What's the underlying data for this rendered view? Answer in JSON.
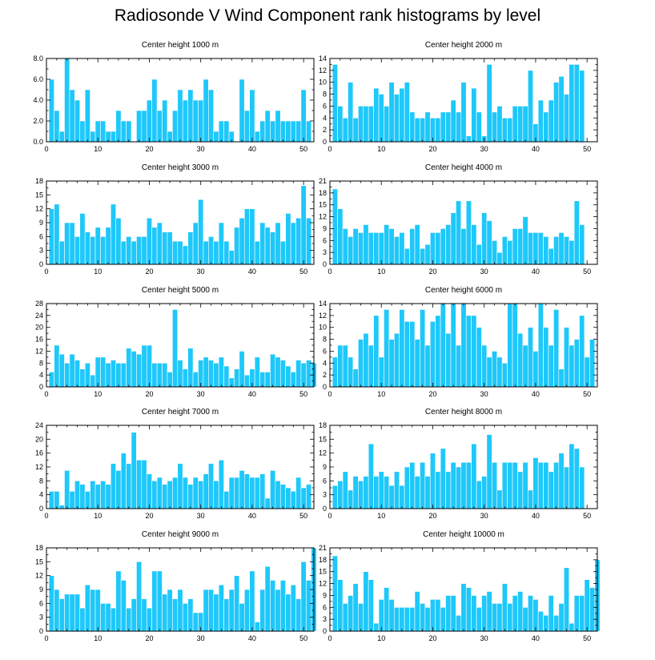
{
  "figure": {
    "title": "Radiosonde V Wind Component rank histograms by level",
    "bar_color": "#1ec8fa",
    "bar_stroke": "#ffffff"
  },
  "chart_data": [
    {
      "type": "bar",
      "title": "Center height 1000 m",
      "xlim": [
        0,
        52
      ],
      "ylim": [
        0,
        8
      ],
      "yticks": [
        0,
        2,
        4,
        6,
        8
      ],
      "ytick_labels": [
        "0.0",
        "2.0",
        "4.0",
        "6.0",
        "8.0"
      ],
      "xticks": [
        0,
        10,
        20,
        30,
        40,
        50
      ],
      "values": [
        6,
        3,
        1,
        8,
        5,
        4,
        2,
        5,
        1,
        2,
        2,
        1,
        1,
        3,
        2,
        2,
        0,
        3,
        3,
        4,
        6,
        3,
        4,
        1,
        3,
        5,
        4,
        5,
        4,
        4,
        6,
        5,
        1,
        2,
        2,
        1,
        0,
        6,
        3,
        5,
        1,
        2,
        3,
        2,
        3,
        2,
        2,
        2,
        2,
        5,
        2
      ]
    },
    {
      "type": "bar",
      "title": "Center height 2000 m",
      "xlim": [
        0,
        52
      ],
      "ylim": [
        0,
        14
      ],
      "yticks": [
        0,
        2,
        4,
        6,
        8,
        10,
        12,
        14
      ],
      "ytick_labels": [
        "0",
        "2",
        "4",
        "6",
        "8",
        "10",
        "12",
        "14"
      ],
      "xticks": [
        0,
        10,
        20,
        30,
        40,
        50
      ],
      "values": [
        13,
        6,
        4,
        10,
        4,
        6,
        6,
        6,
        9,
        8,
        6,
        10,
        8,
        9,
        10,
        5,
        4,
        4,
        5,
        4,
        4,
        5,
        5,
        7,
        5,
        10,
        1,
        9,
        5,
        1,
        13,
        5,
        6,
        4,
        4,
        6,
        6,
        6,
        12,
        3,
        7,
        5,
        7,
        10,
        11,
        8,
        13,
        13,
        12
      ]
    },
    {
      "type": "bar",
      "title": "Center height 3000 m",
      "xlim": [
        0,
        52
      ],
      "ylim": [
        0,
        18
      ],
      "yticks": [
        0,
        3,
        6,
        9,
        12,
        15,
        18
      ],
      "ytick_labels": [
        "0",
        "3",
        "6",
        "9",
        "12",
        "15",
        "18"
      ],
      "xticks": [
        0,
        10,
        20,
        30,
        40,
        50
      ],
      "values": [
        12,
        13,
        5,
        9,
        9,
        6,
        11,
        7,
        6,
        8,
        6,
        8,
        13,
        10,
        5,
        6,
        5,
        6,
        6,
        10,
        8,
        9,
        7,
        7,
        5,
        5,
        4,
        7,
        9,
        14,
        5,
        6,
        5,
        9,
        5,
        3,
        8,
        10,
        12,
        12,
        5,
        9,
        8,
        7,
        9,
        5,
        11,
        9,
        10,
        17,
        10
      ]
    },
    {
      "type": "bar",
      "title": "Center height 4000 m",
      "xlim": [
        0,
        52
      ],
      "ylim": [
        0,
        21
      ],
      "yticks": [
        0,
        3,
        6,
        9,
        12,
        15,
        18,
        21
      ],
      "ytick_labels": [
        "0",
        "3",
        "6",
        "9",
        "12",
        "15",
        "18",
        "21"
      ],
      "xticks": [
        0,
        10,
        20,
        30,
        40,
        50
      ],
      "values": [
        19,
        14,
        9,
        7,
        9,
        8,
        10,
        8,
        8,
        8,
        10,
        9,
        7,
        8,
        4,
        9,
        10,
        4,
        5,
        8,
        8,
        9,
        10,
        13,
        16,
        9,
        16,
        10,
        5,
        13,
        11,
        6,
        3,
        7,
        6,
        9,
        9,
        12,
        8,
        8,
        8,
        7,
        4,
        7,
        8,
        7,
        6,
        16,
        10
      ]
    },
    {
      "type": "bar",
      "title": "Center height 5000 m",
      "xlim": [
        0,
        52
      ],
      "ylim": [
        0,
        28
      ],
      "yticks": [
        0,
        4,
        8,
        12,
        16,
        20,
        24,
        28
      ],
      "ytick_labels": [
        "0",
        "4",
        "8",
        "12",
        "16",
        "20",
        "24",
        "28"
      ],
      "xticks": [
        0,
        10,
        20,
        30,
        40,
        50
      ],
      "values": [
        5,
        14,
        11,
        8,
        11,
        9,
        6,
        8,
        4,
        10,
        10,
        8,
        9,
        8,
        8,
        13,
        12,
        11,
        14,
        14,
        8,
        8,
        8,
        5,
        26,
        9,
        6,
        13,
        5,
        9,
        10,
        9,
        8,
        10,
        7,
        3,
        6,
        12,
        4,
        6,
        10,
        5,
        5,
        11,
        10,
        9,
        7,
        5,
        9,
        8,
        9,
        8
      ]
    },
    {
      "type": "bar",
      "title": "Center height 6000 m",
      "xlim": [
        0,
        52
      ],
      "ylim": [
        0,
        14
      ],
      "yticks": [
        0,
        2,
        4,
        6,
        8,
        10,
        12,
        14
      ],
      "ytick_labels": [
        "0",
        "2",
        "4",
        "6",
        "8",
        "10",
        "12",
        "14"
      ],
      "xticks": [
        0,
        10,
        20,
        30,
        40,
        50
      ],
      "values": [
        5,
        7,
        7,
        5,
        3,
        8,
        9,
        7,
        12,
        5,
        13,
        8,
        9,
        13,
        11,
        11,
        8,
        13,
        7,
        11,
        12,
        14,
        9,
        14,
        7,
        14,
        12,
        12,
        10,
        7,
        5,
        6,
        5,
        4,
        14,
        14,
        9,
        7,
        10,
        6,
        14,
        10,
        7,
        13,
        3,
        10,
        7,
        8,
        12,
        5,
        8
      ]
    },
    {
      "type": "bar",
      "title": "Center height 7000 m",
      "xlim": [
        0,
        52
      ],
      "ylim": [
        0,
        24
      ],
      "yticks": [
        0,
        4,
        8,
        12,
        16,
        20,
        24
      ],
      "ytick_labels": [
        "0",
        "4",
        "8",
        "12",
        "16",
        "20",
        "24"
      ],
      "xticks": [
        0,
        10,
        20,
        30,
        40,
        50
      ],
      "values": [
        5,
        5,
        1,
        11,
        5,
        8,
        7,
        5,
        8,
        7,
        8,
        7,
        13,
        11,
        16,
        13,
        22,
        14,
        14,
        10,
        8,
        9,
        7,
        8,
        9,
        13,
        9,
        7,
        9,
        8,
        10,
        13,
        8,
        14,
        5,
        9,
        9,
        11,
        10,
        9,
        9,
        10,
        3,
        11,
        8,
        7,
        6,
        5,
        9,
        6,
        7
      ]
    },
    {
      "type": "bar",
      "title": "Center height 8000 m",
      "xlim": [
        0,
        52
      ],
      "ylim": [
        0,
        18
      ],
      "yticks": [
        0,
        3,
        6,
        9,
        12,
        15,
        18
      ],
      "ytick_labels": [
        "0",
        "3",
        "6",
        "9",
        "12",
        "15",
        "18"
      ],
      "xticks": [
        0,
        10,
        20,
        30,
        40,
        50
      ],
      "values": [
        5,
        6,
        8,
        4,
        7,
        6,
        7,
        14,
        7,
        8,
        7,
        5,
        8,
        5,
        9,
        10,
        7,
        10,
        7,
        12,
        8,
        13,
        8,
        10,
        9,
        10,
        10,
        14,
        6,
        7,
        16,
        10,
        4,
        10,
        10,
        10,
        8,
        10,
        4,
        11,
        10,
        10,
        8,
        10,
        12,
        9,
        14,
        13,
        9
      ]
    },
    {
      "type": "bar",
      "title": "Center height 9000 m",
      "xlim": [
        0,
        52
      ],
      "ylim": [
        0,
        18
      ],
      "yticks": [
        0,
        3,
        6,
        9,
        12,
        15,
        18
      ],
      "ytick_labels": [
        "0",
        "3",
        "6",
        "9",
        "12",
        "15",
        "18"
      ],
      "xticks": [
        0,
        10,
        20,
        30,
        40,
        50
      ],
      "values": [
        12,
        9,
        7,
        8,
        8,
        8,
        5,
        10,
        9,
        9,
        6,
        6,
        5,
        13,
        11,
        5,
        7,
        15,
        7,
        5,
        13,
        13,
        8,
        9,
        7,
        9,
        6,
        7,
        4,
        4,
        9,
        9,
        8,
        10,
        7,
        9,
        12,
        6,
        9,
        13,
        2,
        9,
        14,
        11,
        9,
        11,
        8,
        10,
        7,
        15,
        11,
        18
      ]
    },
    {
      "type": "bar",
      "title": "Center height 10000 m",
      "xlim": [
        0,
        52
      ],
      "ylim": [
        0,
        21
      ],
      "yticks": [
        0,
        3,
        6,
        9,
        12,
        15,
        18,
        21
      ],
      "ytick_labels": [
        "0",
        "3",
        "6",
        "9",
        "12",
        "15",
        "18",
        "21"
      ],
      "xticks": [
        0,
        10,
        20,
        30,
        40,
        50
      ],
      "values": [
        19,
        13,
        7,
        9,
        12,
        7,
        15,
        13,
        2,
        8,
        11,
        8,
        6,
        6,
        6,
        6,
        10,
        7,
        6,
        8,
        8,
        6,
        9,
        9,
        4,
        12,
        11,
        9,
        6,
        9,
        10,
        7,
        7,
        12,
        7,
        9,
        10,
        6,
        9,
        8,
        5,
        4,
        9,
        4,
        7,
        16,
        2,
        9,
        9,
        13,
        11,
        18
      ]
    }
  ]
}
